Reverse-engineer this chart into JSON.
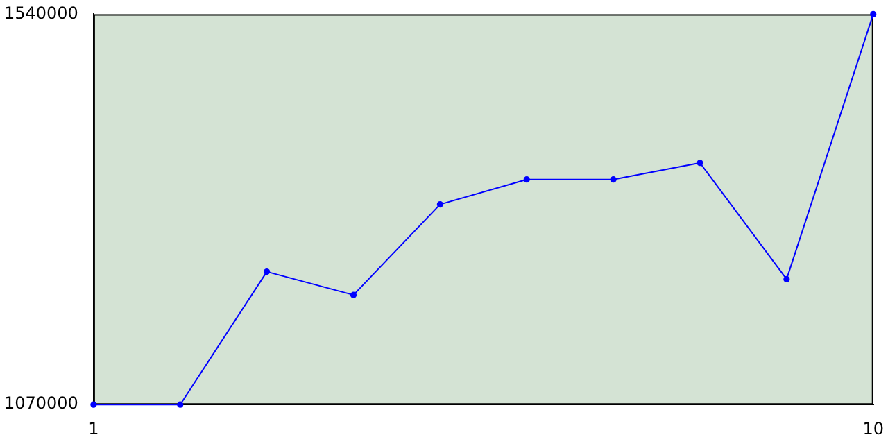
{
  "chart_data": {
    "type": "line",
    "x": [
      1,
      2,
      3,
      4,
      5,
      6,
      7,
      8,
      9,
      10
    ],
    "series": [
      {
        "color": "#0000ff",
        "values": [
          1070000,
          1070000,
          1230000,
          1202000,
          1311000,
          1341000,
          1341000,
          1361000,
          1221000,
          1540000
        ]
      }
    ],
    "xlim": [
      1,
      10
    ],
    "xticks": [
      1,
      10
    ],
    "ylim": [
      1070000,
      1540000
    ],
    "yticks": [
      1070000,
      1540000
    ],
    "grid": false,
    "legend": false,
    "marker": "circle",
    "line_style": "solid"
  }
}
